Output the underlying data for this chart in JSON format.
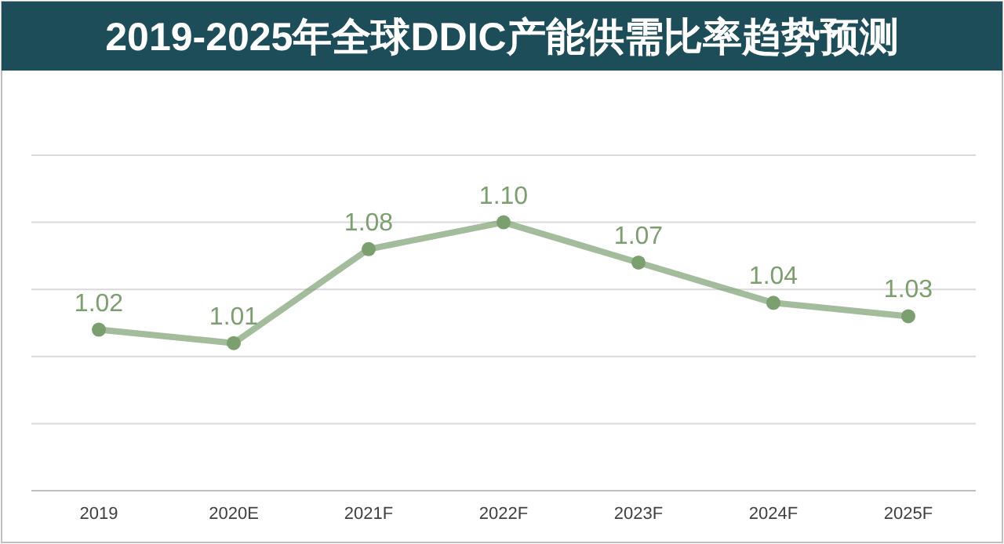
{
  "chart_data": {
    "type": "line",
    "title": "2019-2025年全球DDIC产能供需比率趋势预测",
    "categories": [
      "2019",
      "2020E",
      "2021F",
      "2022F",
      "2023F",
      "2024F",
      "2025F"
    ],
    "series": [
      {
        "color": "#7c9f70",
        "values": [
          1.02,
          1.01,
          1.08,
          1.1,
          1.07,
          1.04,
          1.03
        ],
        "value_labels": [
          "1.02",
          "1.01",
          "1.08",
          "1.10",
          "1.07",
          "1.04",
          "1.03"
        ]
      }
    ],
    "ylim": [
      0.9,
      1.15
    ],
    "yticks": [
      {
        "value": 0.9,
        "label": null
      },
      {
        "value": 0.95,
        "label": null
      },
      {
        "value": 1.0,
        "label": null
      },
      {
        "value": 1.05,
        "label": null
      },
      {
        "value": 1.1,
        "label": null
      },
      {
        "value": 1.15,
        "label": null
      }
    ],
    "grid": "y",
    "tick_labels": "x",
    "marker": "circle",
    "line_style": "solid"
  }
}
